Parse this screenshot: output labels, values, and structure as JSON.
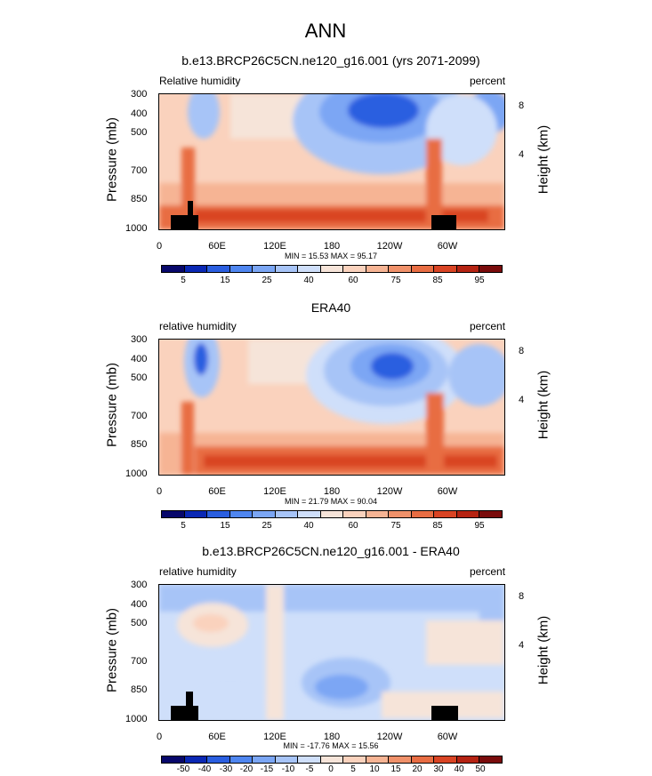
{
  "title": "ANN",
  "chart_data": [
    {
      "type": "heatmap",
      "title": "b.e13.BRCP26C5CN.ne120_g16.001 (yrs 2071-2099)",
      "left_label": "Relative humidity",
      "right_label": "percent",
      "xlabel": "",
      "ylabel": "Pressure (mb)",
      "y2label": "Height (km)",
      "xticks": [
        "0",
        "60E",
        "120E",
        "180",
        "120W",
        "60W"
      ],
      "yticks": [
        "300",
        "400",
        "500",
        "700",
        "850",
        "1000"
      ],
      "y2ticks": [
        "8",
        "4"
      ],
      "stats": "MIN = 15.53  MAX = 95.17",
      "min": 15.53,
      "max": 95.17,
      "colorbar_labels": [
        "5",
        "15",
        "25",
        "40",
        "60",
        "75",
        "85",
        "95"
      ]
    },
    {
      "type": "heatmap",
      "title": "ERA40",
      "left_label": "relative humidity",
      "right_label": "percent",
      "xlabel": "",
      "ylabel": "Pressure (mb)",
      "y2label": "Height (km)",
      "xticks": [
        "0",
        "60E",
        "120E",
        "180",
        "120W",
        "60W"
      ],
      "yticks": [
        "300",
        "400",
        "500",
        "700",
        "850",
        "1000"
      ],
      "y2ticks": [
        "8",
        "4"
      ],
      "stats": "MIN = 21.79  MAX = 90.04",
      "min": 21.79,
      "max": 90.04,
      "colorbar_labels": [
        "5",
        "15",
        "25",
        "40",
        "60",
        "75",
        "85",
        "95"
      ]
    },
    {
      "type": "heatmap",
      "title": "b.e13.BRCP26C5CN.ne120_g16.001 - ERA40",
      "left_label": "relative humidity",
      "right_label": "percent",
      "xlabel": "",
      "ylabel": "Pressure (mb)",
      "y2label": "Height (km)",
      "xticks": [
        "0",
        "60E",
        "120E",
        "180",
        "120W",
        "60W"
      ],
      "yticks": [
        "300",
        "400",
        "500",
        "700",
        "850",
        "1000"
      ],
      "y2ticks": [
        "8",
        "4"
      ],
      "stats": "MIN = -17.76  MAX = 15.56",
      "min": -17.76,
      "max": 15.56,
      "colorbar_labels": [
        "-50",
        "-40",
        "-30",
        "-20",
        "-15",
        "-10",
        "-5",
        "0",
        "5",
        "10",
        "15",
        "20",
        "30",
        "40",
        "50"
      ]
    }
  ],
  "colors": {
    "abs_scale": [
      "#08086b",
      "#0a28b4",
      "#2a5ee0",
      "#4f86f0",
      "#7ba6f4",
      "#a7c4f7",
      "#cfdffa",
      "#f6e4d9",
      "#fad2bd",
      "#f6b494",
      "#f0916a",
      "#e86d43",
      "#d94424",
      "#b52312",
      "#7a0c0c"
    ],
    "diff_scale": [
      "#08086b",
      "#0a28b4",
      "#2a5ee0",
      "#4f86f0",
      "#7ba6f4",
      "#a7c4f7",
      "#cfdffa",
      "#f6e4d9",
      "#fad2bd",
      "#f6b494",
      "#f0916a",
      "#e86d43",
      "#d94424",
      "#b52312",
      "#7a0c0c"
    ]
  }
}
